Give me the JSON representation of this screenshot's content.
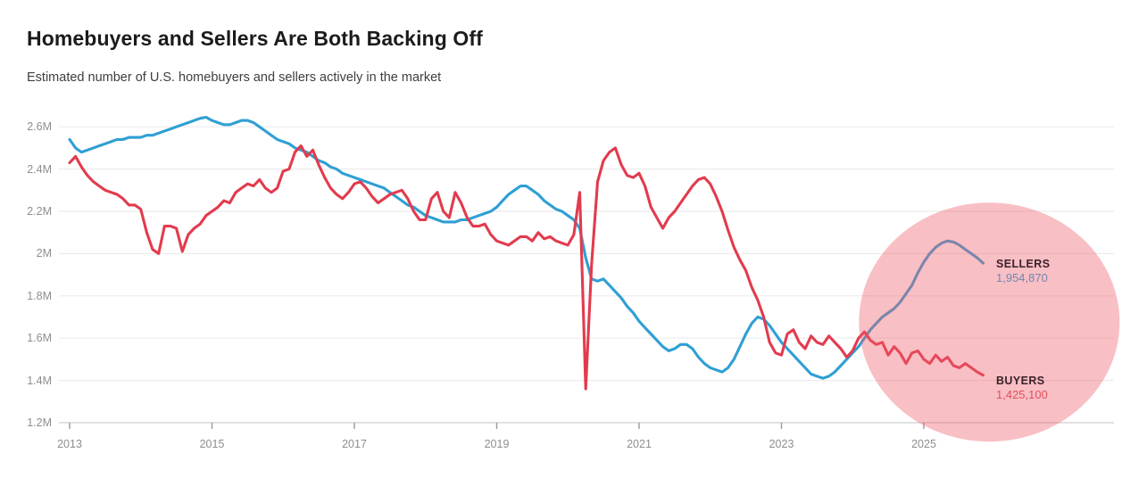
{
  "header": {
    "title": "Homebuyers and Sellers Are Both Backing Off",
    "subtitle": "Estimated number of U.S. homebuyers and sellers actively in the market"
  },
  "colors": {
    "sellers_line": "#2f9fd4",
    "buyers_line": "#e23b4e",
    "highlight_circle": "rgba(238,95,110,0.40)",
    "gridline": "#ececec",
    "axis_line": "#d7d7d7",
    "tick_mark": "#9a9a9a",
    "axis_text": "#8e8e8e",
    "annotation_name_text": "#3c2128",
    "sellers_value_text": "#7287b0",
    "buyers_value_text": "#e2505c"
  },
  "chart_data": {
    "type": "line",
    "title": "Homebuyers and Sellers Are Both Backing Off",
    "subtitle": "Estimated number of U.S. homebuyers and sellers actively in the market",
    "unit": "millions of people",
    "x_start_year": 2013.0,
    "x_step_years": 0.083333,
    "x_end_year": 2025.83,
    "xlim": [
      2013,
      2026.2
    ],
    "ylim": [
      1.2,
      2.7
    ],
    "grid": "horizontal",
    "legend_position": "end-of-line-labels",
    "x_axis": {
      "ticks": [
        {
          "label": "2013",
          "value": 2013
        },
        {
          "label": "2015",
          "value": 2015
        },
        {
          "label": "2017",
          "value": 2017
        },
        {
          "label": "2019",
          "value": 2019
        },
        {
          "label": "2021",
          "value": 2021
        },
        {
          "label": "2023",
          "value": 2023
        },
        {
          "label": "2025",
          "value": 2025
        }
      ]
    },
    "y_axis": {
      "ticks": [
        {
          "label": "2.6M",
          "value": 2.6
        },
        {
          "label": "2.4M",
          "value": 2.4
        },
        {
          "label": "2.2M",
          "value": 2.2
        },
        {
          "label": "2M",
          "value": 2.0
        },
        {
          "label": "1.8M",
          "value": 1.8
        },
        {
          "label": "1.6M",
          "value": 1.6
        },
        {
          "label": "1.4M",
          "value": 1.4
        },
        {
          "label": "1.2M",
          "value": 1.2
        }
      ]
    },
    "series": [
      {
        "name": "SELLERS",
        "color": "#2f9fd4",
        "final_value": 1954870,
        "final_value_label": "1,954,870",
        "values": [
          2.54,
          2.5,
          2.48,
          2.49,
          2.5,
          2.51,
          2.52,
          2.53,
          2.54,
          2.54,
          2.55,
          2.55,
          2.55,
          2.56,
          2.56,
          2.57,
          2.58,
          2.59,
          2.6,
          2.61,
          2.62,
          2.63,
          2.64,
          2.645,
          2.63,
          2.62,
          2.61,
          2.61,
          2.62,
          2.63,
          2.63,
          2.62,
          2.6,
          2.58,
          2.56,
          2.54,
          2.53,
          2.52,
          2.5,
          2.49,
          2.48,
          2.46,
          2.44,
          2.43,
          2.41,
          2.4,
          2.38,
          2.37,
          2.36,
          2.35,
          2.34,
          2.33,
          2.32,
          2.31,
          2.29,
          2.27,
          2.25,
          2.23,
          2.22,
          2.2,
          2.18,
          2.17,
          2.16,
          2.15,
          2.15,
          2.15,
          2.16,
          2.16,
          2.17,
          2.18,
          2.19,
          2.2,
          2.22,
          2.25,
          2.28,
          2.3,
          2.32,
          2.32,
          2.3,
          2.28,
          2.25,
          2.23,
          2.21,
          2.2,
          2.18,
          2.16,
          2.12,
          1.98,
          1.88,
          1.87,
          1.88,
          1.85,
          1.82,
          1.79,
          1.75,
          1.72,
          1.68,
          1.65,
          1.62,
          1.59,
          1.56,
          1.54,
          1.55,
          1.57,
          1.57,
          1.55,
          1.51,
          1.48,
          1.46,
          1.45,
          1.44,
          1.46,
          1.5,
          1.56,
          1.62,
          1.67,
          1.7,
          1.69,
          1.66,
          1.62,
          1.58,
          1.55,
          1.52,
          1.49,
          1.46,
          1.43,
          1.42,
          1.41,
          1.42,
          1.44,
          1.47,
          1.5,
          1.53,
          1.56,
          1.6,
          1.64,
          1.67,
          1.7,
          1.72,
          1.74,
          1.77,
          1.81,
          1.85,
          1.91,
          1.96,
          2.0,
          2.03,
          2.05,
          2.06,
          2.055,
          2.04,
          2.02,
          2.0,
          1.98,
          1.955
        ]
      },
      {
        "name": "BUYERS",
        "color": "#e23b4e",
        "final_value": 1425100,
        "final_value_label": "1,425,100",
        "values": [
          2.43,
          2.46,
          2.41,
          2.37,
          2.34,
          2.32,
          2.3,
          2.29,
          2.28,
          2.26,
          2.23,
          2.23,
          2.21,
          2.1,
          2.02,
          2.0,
          2.13,
          2.13,
          2.12,
          2.01,
          2.09,
          2.12,
          2.14,
          2.18,
          2.2,
          2.22,
          2.25,
          2.24,
          2.29,
          2.31,
          2.33,
          2.32,
          2.35,
          2.31,
          2.29,
          2.31,
          2.39,
          2.4,
          2.48,
          2.51,
          2.46,
          2.49,
          2.42,
          2.36,
          2.31,
          2.28,
          2.26,
          2.29,
          2.33,
          2.34,
          2.31,
          2.27,
          2.24,
          2.26,
          2.28,
          2.29,
          2.3,
          2.26,
          2.2,
          2.16,
          2.16,
          2.26,
          2.29,
          2.2,
          2.17,
          2.29,
          2.24,
          2.17,
          2.13,
          2.13,
          2.14,
          2.09,
          2.06,
          2.05,
          2.04,
          2.06,
          2.08,
          2.08,
          2.06,
          2.1,
          2.07,
          2.08,
          2.06,
          2.05,
          2.04,
          2.09,
          2.29,
          1.36,
          1.95,
          2.34,
          2.44,
          2.48,
          2.5,
          2.42,
          2.37,
          2.36,
          2.38,
          2.32,
          2.22,
          2.17,
          2.12,
          2.17,
          2.2,
          2.24,
          2.28,
          2.32,
          2.35,
          2.36,
          2.33,
          2.27,
          2.2,
          2.11,
          2.03,
          1.97,
          1.92,
          1.84,
          1.78,
          1.7,
          1.58,
          1.53,
          1.52,
          1.62,
          1.64,
          1.58,
          1.55,
          1.61,
          1.58,
          1.57,
          1.61,
          1.58,
          1.55,
          1.51,
          1.54,
          1.6,
          1.63,
          1.59,
          1.57,
          1.58,
          1.52,
          1.56,
          1.53,
          1.48,
          1.53,
          1.54,
          1.5,
          1.48,
          1.52,
          1.49,
          1.51,
          1.47,
          1.46,
          1.48,
          1.46,
          1.44,
          1.4251
        ]
      }
    ],
    "annotations": {
      "sellers": {
        "label": "SELLERS",
        "value": "1,954,870"
      },
      "buyers": {
        "label": "BUYERS",
        "value": "1,425,100"
      }
    },
    "highlight_circle": {
      "description": "pink semi-transparent circle emphasizing 2024-2025 data",
      "color": "rgba(238,95,110,0.40)",
      "center_year": 2025.92,
      "center_value": 1.676
    }
  }
}
